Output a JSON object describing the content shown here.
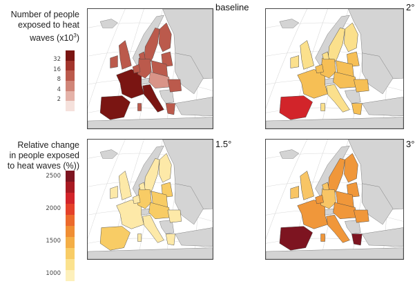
{
  "legends": {
    "exposure": {
      "title_line1": "Number of people",
      "title_line2": "exposed to heat",
      "title_line3": "waves (x10",
      "title_sup": "3",
      "title_end": ")",
      "ticks": [
        "32",
        "16",
        "8",
        "4",
        "2"
      ],
      "colors": [
        "#7a1512",
        "#a3352c",
        "#bb5a4c",
        "#d08578",
        "#e4b2a8",
        "#f5e1dc"
      ]
    },
    "relative_change": {
      "title_line1": "Relative change",
      "title_line2": "in people exposed",
      "title_line3": "to heat waves (%))",
      "ticks": [
        "2500",
        "2000",
        "1500",
        "1000"
      ],
      "colors": [
        "#7d1420",
        "#a81a22",
        "#d2242a",
        "#e4412a",
        "#ec6a2c",
        "#f08e33",
        "#f4ae45",
        "#f8cc65",
        "#fbe28e",
        "#fdf0bb"
      ]
    }
  },
  "panels": [
    {
      "title": "baseline",
      "scheme": "exposure",
      "hotspot": "#7a1512",
      "base": "#bb5a4c",
      "light": "#d99488"
    },
    {
      "title": "2°",
      "scheme": "relative_change",
      "hotspot": "#d2242a",
      "base": "#f6bf55",
      "light": "#fbe08c"
    },
    {
      "title": "1.5°",
      "scheme": "relative_change",
      "hotspot": "#f08e33",
      "base": "#f8cc65",
      "light": "#fde9a8"
    },
    {
      "title": "3°",
      "scheme": "relative_change",
      "hotspot": "#7d1420",
      "base": "#f0973a",
      "light": "#f8c565"
    }
  ],
  "colors": {
    "non_eu": "#d4d4d4",
    "sea": "#ffffff",
    "border": "#444444",
    "graticule": "#d8d8d8"
  }
}
